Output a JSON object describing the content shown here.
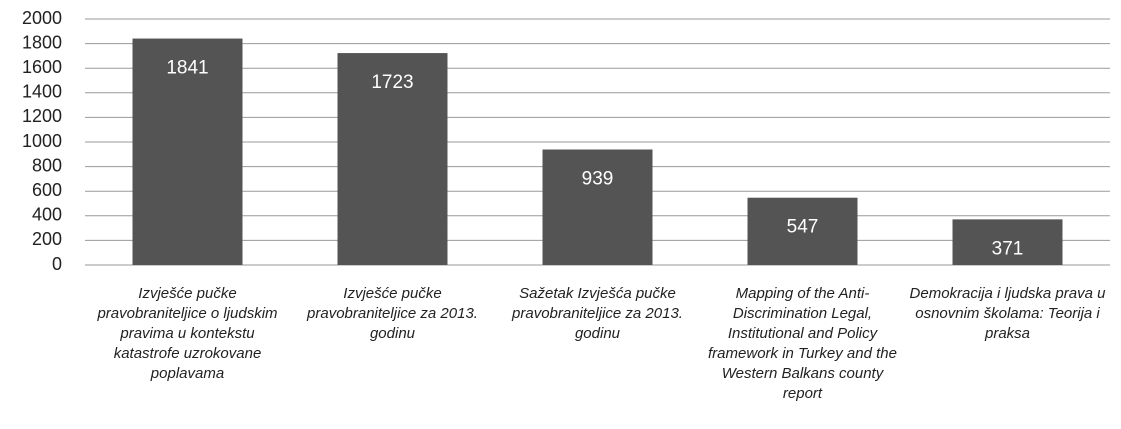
{
  "chart_data": {
    "type": "bar",
    "categories": [
      "Izvješće pučke pravobraniteljice o ljudskim pravima u kontekstu katastrofe uzrokovane poplavama",
      "Izvješće pučke pravobraniteljice za 2013. godinu",
      "Sažetak Izvješća pučke pravobraniteljice za 2013. godinu",
      "Mapping of the Anti-Discrimination Legal, Institutional and Policy framework in Turkey and the Western Balkans county report",
      "Demokracija i ljudska prava u osnovnim školama: Teorija i praksa"
    ],
    "values": [
      1841,
      1723,
      939,
      547,
      371
    ],
    "color": "#545454",
    "ylim": [
      0,
      2000
    ],
    "yticks": [
      0,
      200,
      400,
      600,
      800,
      1000,
      1200,
      1400,
      1600,
      1800,
      2000
    ],
    "grid": true
  }
}
